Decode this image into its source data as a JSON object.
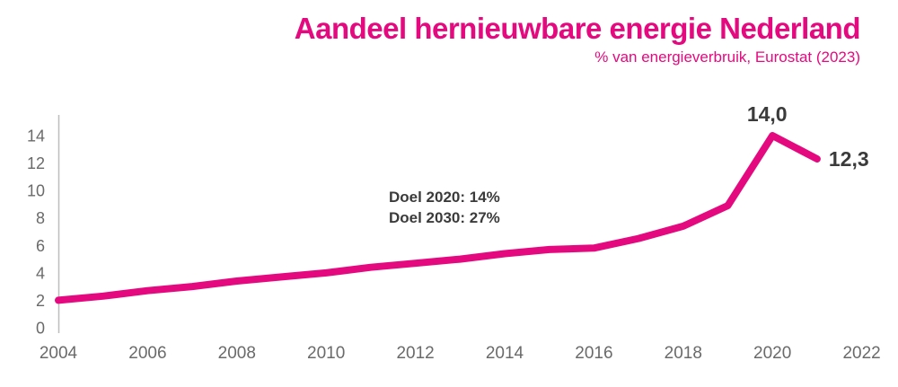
{
  "header": {
    "title": "Aandeel hernieuwbare energie Nederland",
    "subtitle": "% van energieverbruik, Eurostat (2023)"
  },
  "chart_data": {
    "type": "line",
    "title": "Aandeel hernieuwbare energie Nederland",
    "subtitle": "% van energieverbruik, Eurostat (2023)",
    "xlabel": "",
    "ylabel": "",
    "xlim": [
      2004,
      2022
    ],
    "ylim": [
      0,
      15.5
    ],
    "xticks": [
      2004,
      2006,
      2008,
      2010,
      2012,
      2014,
      2016,
      2018,
      2020,
      2022
    ],
    "yticks": [
      0,
      2,
      4,
      6,
      8,
      10,
      12,
      14
    ],
    "grid": false,
    "legend": false,
    "line_color": "#e5097f",
    "series": [
      {
        "name": "Aandeel hernieuwbare energie (% van energieverbruik)",
        "x": [
          2004,
          2005,
          2006,
          2007,
          2008,
          2009,
          2010,
          2011,
          2012,
          2013,
          2014,
          2015,
          2016,
          2017,
          2018,
          2019,
          2020,
          2021
        ],
        "values": [
          2.0,
          2.3,
          2.7,
          3.0,
          3.4,
          3.7,
          4.0,
          4.4,
          4.7,
          5.0,
          5.4,
          5.7,
          5.8,
          6.5,
          7.4,
          8.9,
          14.0,
          12.3
        ]
      }
    ],
    "point_labels": [
      {
        "x": 2020,
        "value": 14.0,
        "text": "14,0",
        "position": "above"
      },
      {
        "x": 2021,
        "value": 12.3,
        "text": "12,3",
        "position": "right"
      }
    ],
    "annotations": [
      {
        "text": "Doel 2020: 14%"
      },
      {
        "text": "Doel 2030: 27%"
      }
    ]
  },
  "colors": {
    "accent": "#e5097f",
    "tick_text": "#6a6a6a",
    "dark_text": "#3b3b3b",
    "axis_line": "#bdbdbd"
  }
}
